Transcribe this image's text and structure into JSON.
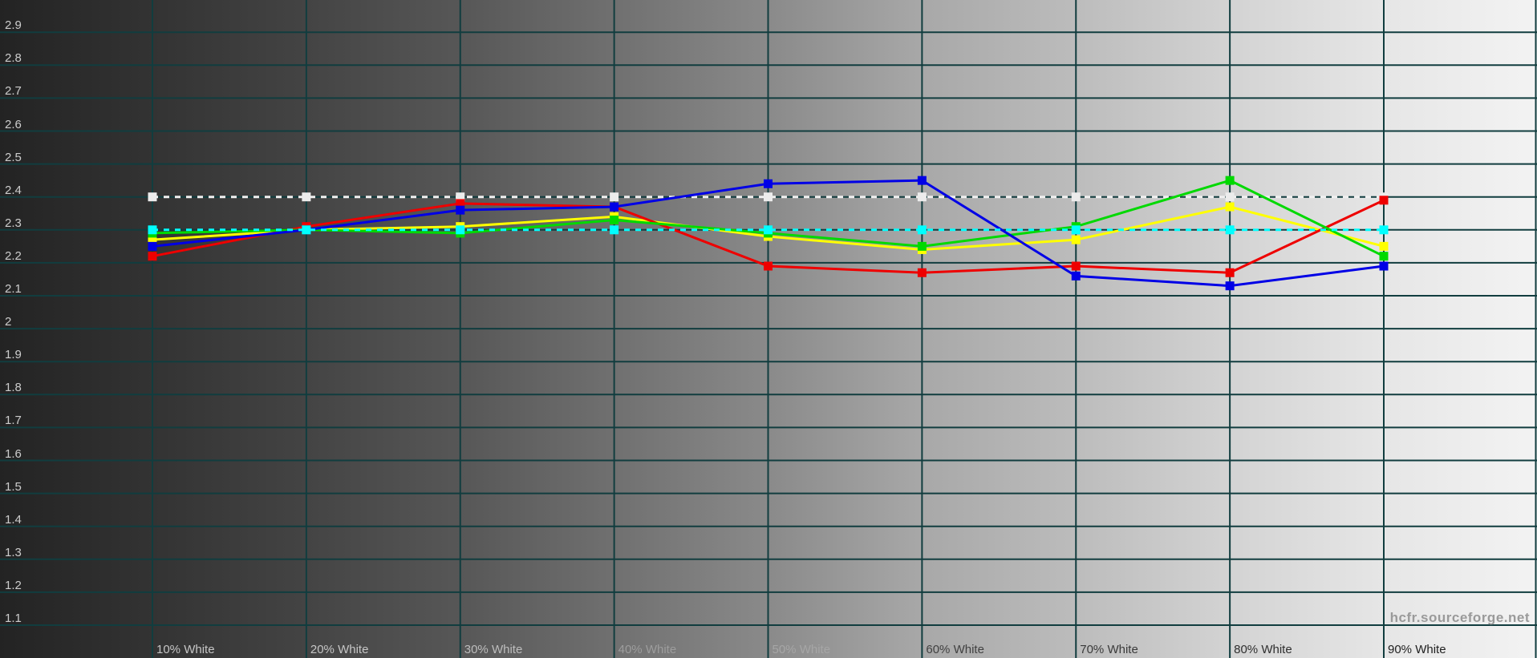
{
  "watermark": "hcfr.sourceforge.net",
  "palette": {
    "gridline": "#113d3f",
    "y_tick_text": "#cdcdcd",
    "background_left": "#232323",
    "background_right": "#f3f3f3",
    "watermark_text": "#9a9a9a"
  },
  "chart_data": {
    "type": "line",
    "title": "",
    "xlabel": "",
    "ylabel": "",
    "grid": true,
    "legend": "none",
    "ylim": [
      1.0,
      3.0
    ],
    "y_ticks": [
      "2.9",
      "2.8",
      "2.7",
      "2.6",
      "2.5",
      "2.4",
      "2.3",
      "2.2",
      "2.1",
      "2",
      "1.9",
      "1.8",
      "1.7",
      "1.6",
      "1.5",
      "1.4",
      "1.3",
      "1.2",
      "1.1"
    ],
    "x_categories": [
      "10% White",
      "20% White",
      "30% White",
      "40% White",
      "50% White",
      "60% White",
      "70% White",
      "80% White",
      "90% White"
    ],
    "x_label_colors": [
      "#c6c6c6",
      "#c6c6c6",
      "#bdbdbd",
      "#9d9d9d",
      "#a6a6a6",
      "#414141",
      "#3a3a3a",
      "#2f2f2f",
      "#1f1f1f"
    ],
    "series": [
      {
        "id": "reference",
        "name": "Reference gamma (2.4)",
        "color": "#f0f0f0",
        "marker_color": "#ececec",
        "style": "dashed",
        "values": [
          2.4,
          2.4,
          2.4,
          2.4,
          2.4,
          2.4,
          2.4,
          2.4,
          2.4
        ]
      },
      {
        "id": "luma",
        "name": "Luminance gamma",
        "color": "#ffff00",
        "marker_color": "#ffff00",
        "style": "solid",
        "values": [
          2.27,
          2.3,
          2.31,
          2.34,
          2.28,
          2.24,
          2.27,
          2.37,
          2.25
        ]
      },
      {
        "id": "red",
        "name": "Red channel gamma",
        "color": "#ee0000",
        "marker_color": "#ee0000",
        "style": "solid",
        "values": [
          2.22,
          2.31,
          2.38,
          2.37,
          2.19,
          2.17,
          2.19,
          2.17,
          2.39
        ]
      },
      {
        "id": "green",
        "name": "Green channel gamma",
        "color": "#00d900",
        "marker_color": "#00d900",
        "style": "solid",
        "values": [
          2.29,
          2.3,
          2.29,
          2.33,
          2.29,
          2.25,
          2.31,
          2.45,
          2.22
        ]
      },
      {
        "id": "blue",
        "name": "Blue channel gamma",
        "color": "#0000e6",
        "marker_color": "#0000e6",
        "style": "solid",
        "values": [
          2.25,
          2.3,
          2.36,
          2.37,
          2.44,
          2.45,
          2.16,
          2.13,
          2.19
        ]
      },
      {
        "id": "average",
        "name": "Average gamma (2.30)",
        "color": "#00ffff",
        "marker_color": "#00ffff",
        "style": "dashed",
        "values": [
          2.3,
          2.3,
          2.3,
          2.3,
          2.3,
          2.3,
          2.3,
          2.3,
          2.3
        ]
      }
    ]
  }
}
